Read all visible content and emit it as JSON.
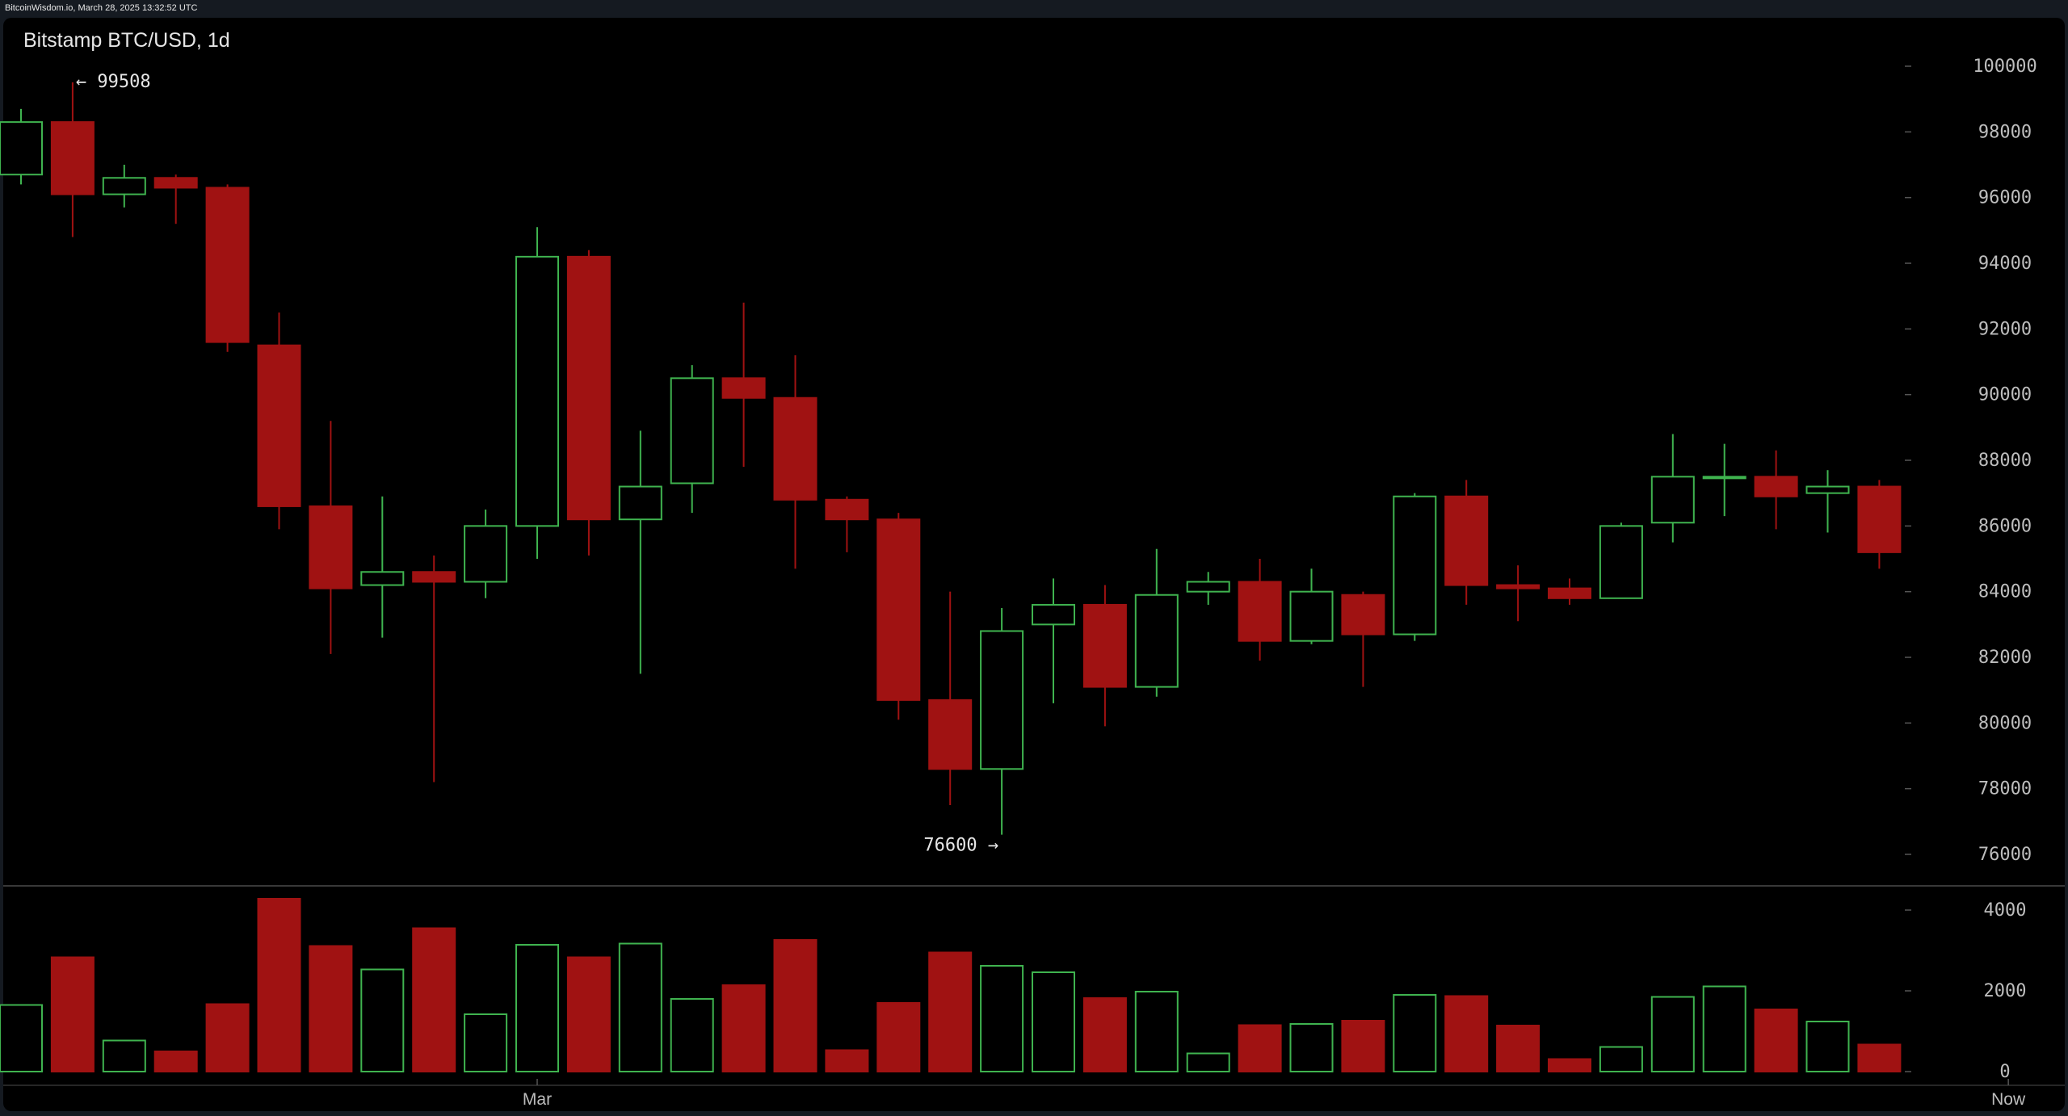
{
  "header": {
    "topline": "BitcoinWisdom.io, March 28, 2025 13:32:52 UTC",
    "title": "Bitstamp BTC/USD, 1d"
  },
  "colors": {
    "up": "#3fb34f",
    "down": "#a01212",
    "grid": "#555555",
    "axis_text": "#bdbdbd",
    "annotation_text": "#e6e6e6"
  },
  "chart_data": [
    {
      "type": "candlestick",
      "title": "Bitstamp BTC/USD, 1d",
      "ylim": [
        74800,
        100600
      ],
      "y_ticks": [
        76000,
        78000,
        80000,
        82000,
        84000,
        86000,
        88000,
        90000,
        92000,
        94000,
        96000,
        98000,
        100000
      ],
      "y_tick_labels": [
        "76000",
        "78000",
        "80000",
        "82000",
        "84000",
        "86000",
        "88000",
        "90000",
        "92000",
        "94000",
        "96000",
        "98000",
        "100000"
      ],
      "x_labels": [
        {
          "index": 10,
          "label": "Mar"
        },
        {
          "index": 38.5,
          "label": "Now"
        }
      ],
      "annotations": [
        {
          "text": "← 99508",
          "value": 99508,
          "index": 1
        },
        {
          "text": "76600 →",
          "value": 76600,
          "index": 19
        }
      ],
      "candles": [
        {
          "o": 96700,
          "h": 98700,
          "l": 96400,
          "c": 98300
        },
        {
          "o": 98300,
          "h": 99508,
          "l": 94800,
          "c": 96100
        },
        {
          "o": 96100,
          "h": 97000,
          "l": 95700,
          "c": 96600
        },
        {
          "o": 96600,
          "h": 96700,
          "l": 95200,
          "c": 96300
        },
        {
          "o": 96300,
          "h": 96400,
          "l": 91300,
          "c": 91600
        },
        {
          "o": 91500,
          "h": 92500,
          "l": 85900,
          "c": 86600
        },
        {
          "o": 86600,
          "h": 89200,
          "l": 82100,
          "c": 84100
        },
        {
          "o": 84200,
          "h": 86900,
          "l": 82600,
          "c": 84600
        },
        {
          "o": 84600,
          "h": 85100,
          "l": 78200,
          "c": 84300
        },
        {
          "o": 84300,
          "h": 86500,
          "l": 83800,
          "c": 86000
        },
        {
          "o": 86000,
          "h": 95100,
          "l": 85000,
          "c": 94200
        },
        {
          "o": 94200,
          "h": 94400,
          "l": 85100,
          "c": 86200
        },
        {
          "o": 86200,
          "h": 88900,
          "l": 81500,
          "c": 87200
        },
        {
          "o": 87300,
          "h": 90900,
          "l": 86400,
          "c": 90500
        },
        {
          "o": 90500,
          "h": 92800,
          "l": 87800,
          "c": 89900
        },
        {
          "o": 89900,
          "h": 91200,
          "l": 84700,
          "c": 86800
        },
        {
          "o": 86800,
          "h": 86900,
          "l": 85200,
          "c": 86200
        },
        {
          "o": 86200,
          "h": 86400,
          "l": 80100,
          "c": 80700
        },
        {
          "o": 80700,
          "h": 84000,
          "l": 77500,
          "c": 78600
        },
        {
          "o": 78600,
          "h": 83500,
          "l": 76600,
          "c": 82800
        },
        {
          "o": 83000,
          "h": 84400,
          "l": 80600,
          "c": 83600
        },
        {
          "o": 83600,
          "h": 84200,
          "l": 79900,
          "c": 81100
        },
        {
          "o": 81100,
          "h": 85300,
          "l": 80800,
          "c": 83900
        },
        {
          "o": 84000,
          "h": 84600,
          "l": 83600,
          "c": 84300
        },
        {
          "o": 84300,
          "h": 85000,
          "l": 81900,
          "c": 82500
        },
        {
          "o": 82500,
          "h": 84700,
          "l": 82400,
          "c": 84000
        },
        {
          "o": 83900,
          "h": 84000,
          "l": 81100,
          "c": 82700
        },
        {
          "o": 82700,
          "h": 87000,
          "l": 82500,
          "c": 86900
        },
        {
          "o": 86900,
          "h": 87400,
          "l": 83600,
          "c": 84200
        },
        {
          "o": 84200,
          "h": 84800,
          "l": 83100,
          "c": 84100
        },
        {
          "o": 84100,
          "h": 84400,
          "l": 83600,
          "c": 83800
        },
        {
          "o": 83800,
          "h": 86100,
          "l": 83800,
          "c": 86000
        },
        {
          "o": 86100,
          "h": 88800,
          "l": 85500,
          "c": 87500
        },
        {
          "o": 87500,
          "h": 88500,
          "l": 86300,
          "c": 87500
        },
        {
          "o": 87500,
          "h": 88300,
          "l": 85900,
          "c": 86900
        },
        {
          "o": 87000,
          "h": 87700,
          "l": 85800,
          "c": 87200
        },
        {
          "o": 87200,
          "h": 87400,
          "l": 84700,
          "c": 85200
        }
      ]
    },
    {
      "type": "bar",
      "title": "",
      "ylabel": "",
      "ylim": [
        0,
        4400
      ],
      "y_ticks": [
        0,
        2000,
        4000
      ],
      "y_tick_labels": [
        "0",
        "2000",
        "4000"
      ],
      "values": [
        1650,
        2830,
        770,
        500,
        1670,
        4280,
        3110,
        2530,
        3550,
        1420,
        3140,
        2830,
        3170,
        1800,
        2140,
        3260,
        530,
        1700,
        2950,
        2620,
        2460,
        1820,
        1980,
        450,
        1150,
        1180,
        1260,
        1900,
        1870,
        1140,
        310,
        610,
        1850,
        2110,
        1540,
        1240,
        670
      ]
    }
  ]
}
